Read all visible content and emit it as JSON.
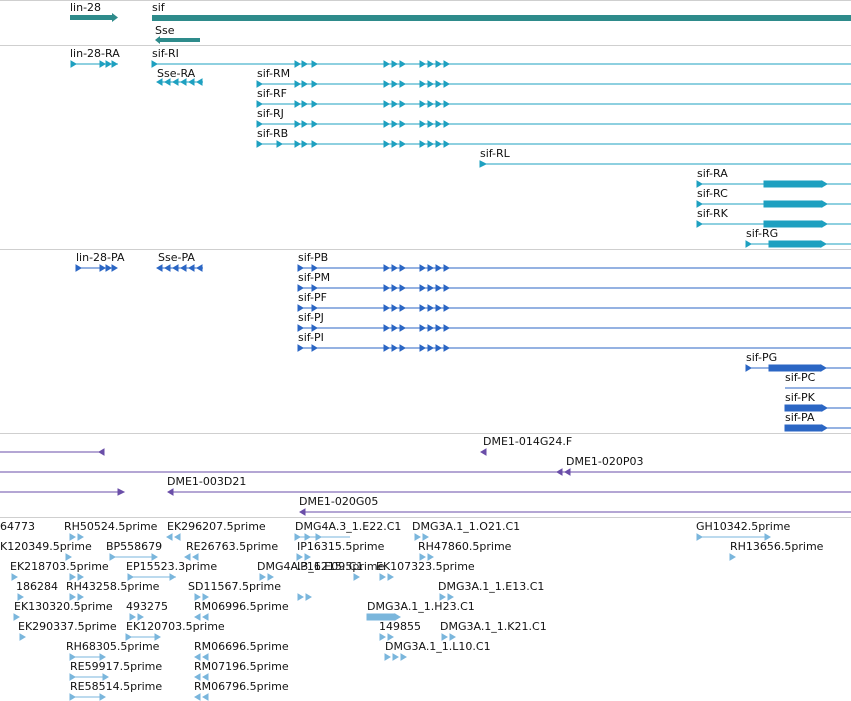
{
  "colors": {
    "gene": "#2e8b8b",
    "transcript": "#1ea0c0",
    "protein": "#2b66c4",
    "clone": "#6a4ea8",
    "est": "#7ab6dc",
    "separator": "#cfcfcf"
  },
  "tracks": {
    "genes": [
      {
        "label": "lin-28"
      },
      {
        "label": "sif"
      },
      {
        "label": "Sse"
      }
    ],
    "transcripts": [
      {
        "label": "lin-28-RA"
      },
      {
        "label": "sif-RI"
      },
      {
        "label": "Sse-RA"
      },
      {
        "label": "sif-RM"
      },
      {
        "label": "sif-RF"
      },
      {
        "label": "sif-RJ"
      },
      {
        "label": "sif-RB"
      },
      {
        "label": "sif-RL"
      },
      {
        "label": "sif-RA"
      },
      {
        "label": "sif-RC"
      },
      {
        "label": "sif-RK"
      },
      {
        "label": "sif-RG"
      }
    ],
    "proteins": [
      {
        "label": "lin-28-PA"
      },
      {
        "label": "Sse-PA"
      },
      {
        "label": "sif-PB"
      },
      {
        "label": "sif-PM"
      },
      {
        "label": "sif-PF"
      },
      {
        "label": "sif-PJ"
      },
      {
        "label": "sif-PI"
      },
      {
        "label": "sif-PG"
      },
      {
        "label": "sif-PC"
      },
      {
        "label": "sif-PK"
      },
      {
        "label": "sif-PA"
      }
    ],
    "clones": [
      {
        "label": "DME1-014G24.F"
      },
      {
        "label": "DME1-020P03"
      },
      {
        "label": "DME1-003D21"
      },
      {
        "label": "DME1-020G05"
      }
    ],
    "ests": [
      {
        "label": "64773"
      },
      {
        "label": "RH50524.5prime"
      },
      {
        "label": "EK296207.5prime"
      },
      {
        "label": "DMG4A.3_1.E22.C1"
      },
      {
        "label": "DMG3A.1_1.O21.C1"
      },
      {
        "label": "GH10342.5prime"
      },
      {
        "label": "K120349.5prime"
      },
      {
        "label": "BP558679"
      },
      {
        "label": "RE26763.5prime"
      },
      {
        "label": "IP16315.5prime"
      },
      {
        "label": "RH47860.5prime"
      },
      {
        "label": "RH13656.5prime"
      },
      {
        "label": "EK218703.5prime"
      },
      {
        "label": "EP15523.3prime"
      },
      {
        "label": "DMG4A.3_1.E09.C1"
      },
      {
        "label": "186284"
      },
      {
        "label": "RH43258.5prime"
      },
      {
        "label": "SD11567.5prime"
      },
      {
        "label": "IP16215.5prime"
      },
      {
        "label": "EK107323.5prime"
      },
      {
        "label": "DMG3A.1_1.E13.C1"
      },
      {
        "label": "EK130320.5prime"
      },
      {
        "label": "493275"
      },
      {
        "label": "RM06996.5prime"
      },
      {
        "label": "DMG3A.1_1.H23.C1"
      },
      {
        "label": "EK290337.5prime"
      },
      {
        "label": "EK120703.5prime"
      },
      {
        "label": "149855"
      },
      {
        "label": "DMG3A.1_1.K21.C1"
      },
      {
        "label": "RH68305.5prime"
      },
      {
        "label": "RM06696.5prime"
      },
      {
        "label": "DMG3A.1_1.L10.C1"
      },
      {
        "label": "RE59917.5prime"
      },
      {
        "label": "RM07196.5prime"
      },
      {
        "label": "RE58514.5prime"
      },
      {
        "label": "RM06796.5prime"
      }
    ]
  }
}
